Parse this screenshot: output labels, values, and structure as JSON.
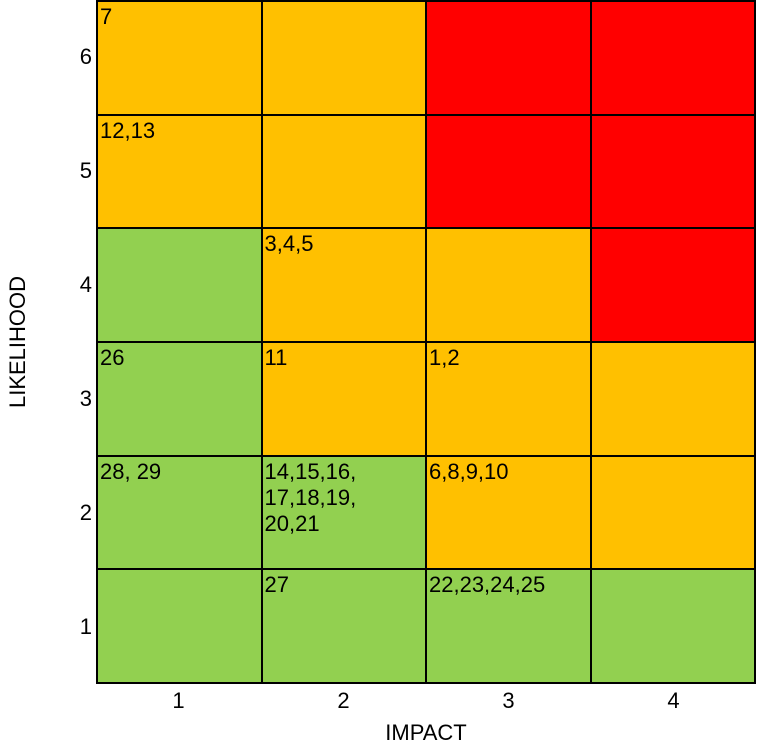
{
  "chart_data": {
    "type": "heatmap",
    "title": "",
    "xlabel": "IMPACT",
    "ylabel": "LIKELIHOOD",
    "x_categories": [
      "1",
      "2",
      "3",
      "4"
    ],
    "y_categories": [
      "6",
      "5",
      "4",
      "3",
      "2",
      "1"
    ],
    "colors": {
      "green": "#92d050",
      "amber": "#ffc000",
      "red": "#ff0000"
    },
    "grid": [
      [
        {
          "color": "amber",
          "label": "7"
        },
        {
          "color": "amber",
          "label": ""
        },
        {
          "color": "red",
          "label": ""
        },
        {
          "color": "red",
          "label": ""
        }
      ],
      [
        {
          "color": "amber",
          "label": "12,13"
        },
        {
          "color": "amber",
          "label": ""
        },
        {
          "color": "red",
          "label": ""
        },
        {
          "color": "red",
          "label": ""
        }
      ],
      [
        {
          "color": "green",
          "label": ""
        },
        {
          "color": "amber",
          "label": "3,4,5"
        },
        {
          "color": "amber",
          "label": ""
        },
        {
          "color": "red",
          "label": ""
        }
      ],
      [
        {
          "color": "green",
          "label": "26"
        },
        {
          "color": "amber",
          "label": "11"
        },
        {
          "color": "amber",
          "label": "1,2"
        },
        {
          "color": "amber",
          "label": ""
        }
      ],
      [
        {
          "color": "green",
          "label": "28, 29"
        },
        {
          "color": "green",
          "label": "14,15,16,\n17,18,19,\n20,21"
        },
        {
          "color": "amber",
          "label": "6,8,9,10"
        },
        {
          "color": "amber",
          "label": ""
        }
      ],
      [
        {
          "color": "green",
          "label": ""
        },
        {
          "color": "green",
          "label": "27"
        },
        {
          "color": "green",
          "label": "22,23,24,25"
        },
        {
          "color": "green",
          "label": ""
        }
      ]
    ]
  }
}
